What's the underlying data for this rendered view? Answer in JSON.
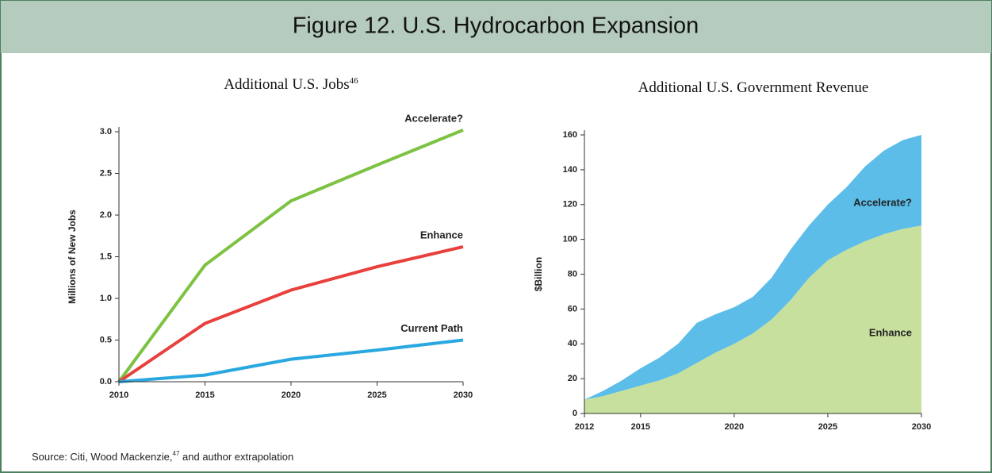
{
  "figure_title": "Figure 12. U.S. Hydrocarbon Expansion",
  "source": [
    "Source: Citi, Wood Mackenzie,",
    "47",
    " and author extrapolation"
  ],
  "chart_data": [
    {
      "type": "line",
      "title": "Additional U.S. Jobs",
      "title_note": "46",
      "y_label": "Millions of New Jobs",
      "x": [
        2010,
        2015,
        2020,
        2025,
        2030
      ],
      "xlim": [
        2010,
        2030
      ],
      "xticks": [
        2010,
        2015,
        2020,
        2025,
        2030
      ],
      "ylim": [
        0,
        3
      ],
      "yticks": [
        {
          "value": 0,
          "label": "0.0"
        },
        0.5,
        {
          "value": 1,
          "label": "1.0"
        },
        1.5,
        {
          "value": 2,
          "label": "2.0"
        },
        2.5,
        {
          "value": 3,
          "label": "3.0"
        }
      ],
      "series": [
        {
          "name": "Accelerate?",
          "color": "#7dc242",
          "values": [
            0,
            1.4,
            2.17,
            2.6,
            3.02
          ]
        },
        {
          "name": "Enhance",
          "color": "#e8403c",
          "values": [
            0,
            0.7,
            1.1,
            1.38,
            1.62
          ]
        },
        {
          "name": "Current Path",
          "color": "#29a8e0",
          "values": [
            0,
            0.08,
            0.27,
            0.38,
            0.5
          ]
        }
      ]
    },
    {
      "type": "area",
      "stacked": true,
      "title": "Additional U.S. Government Revenue",
      "y_label": "$Billion",
      "x": [
        2012,
        2013,
        2014,
        2015,
        2016,
        2017,
        2018,
        2019,
        2020,
        2021,
        2022,
        2023,
        2024,
        2025,
        2026,
        2027,
        2028,
        2029,
        2030
      ],
      "xlim": [
        2012,
        2030
      ],
      "xticks": [
        2012,
        2015,
        2020,
        2025,
        2030
      ],
      "ylim": [
        0,
        160
      ],
      "yticks": [
        0,
        20,
        40,
        60,
        80,
        100,
        120,
        140,
        160
      ],
      "series": [
        {
          "name": "Enhance",
          "color": "#c8e09e",
          "values": [
            8,
            10,
            13,
            16,
            19,
            23,
            29,
            35,
            40,
            46,
            54,
            65,
            78,
            88,
            94,
            99,
            103,
            106,
            108
          ]
        },
        {
          "name": "Accelerate?",
          "color": "#5bbde8",
          "values": [
            0,
            3,
            6,
            10,
            13,
            17,
            23,
            22,
            21,
            21,
            24,
            29,
            30,
            32,
            36,
            43,
            48,
            51,
            52
          ]
        }
      ]
    }
  ]
}
